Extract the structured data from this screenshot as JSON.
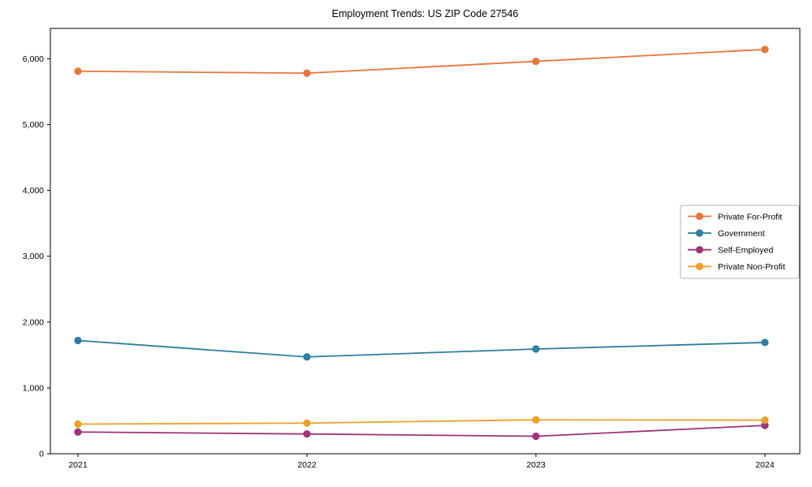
{
  "page": {
    "title": "Employment Trends: US ZIP Code 27546"
  },
  "chart_data": {
    "type": "line",
    "title": "Employment Trends: US ZIP Code 27546",
    "xlabel": "",
    "ylabel": "",
    "x": [
      "2021",
      "2022",
      "2023",
      "2024"
    ],
    "yticks": [
      0,
      1000,
      2000,
      3000,
      4000,
      5000,
      6000
    ],
    "ylim": [
      0,
      6460
    ],
    "grid": false,
    "legend_position": "center right",
    "marker": "circle",
    "series": [
      {
        "name": "Private For-Profit",
        "color": "#e8763d",
        "values": [
          5810,
          5780,
          5960,
          6140
        ]
      },
      {
        "name": "Government",
        "color": "#2e7fa0",
        "values": [
          1720,
          1470,
          1590,
          1690
        ]
      },
      {
        "name": "Self-Employed",
        "color": "#a13378",
        "values": [
          330,
          300,
          265,
          430
        ]
      },
      {
        "name": "Private Non-Profit",
        "color": "#f0a02a",
        "values": [
          450,
          465,
          515,
          510
        ]
      }
    ]
  }
}
